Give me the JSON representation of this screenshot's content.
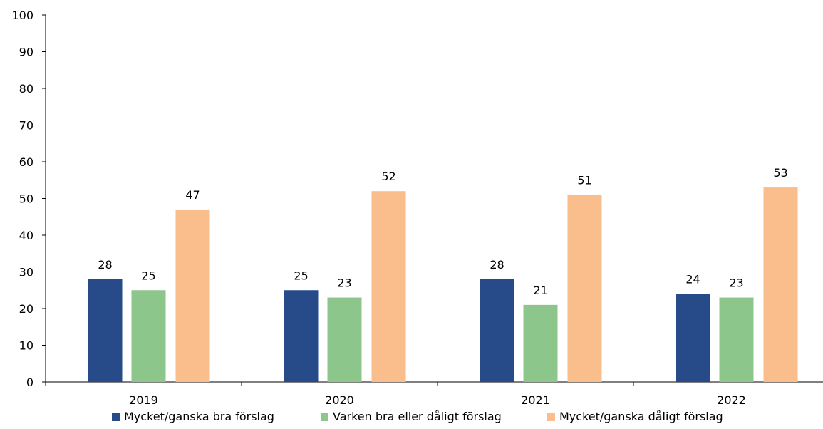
{
  "chart_data": {
    "type": "bar",
    "title": "",
    "xlabel": "",
    "ylabel": "",
    "categories": [
      "2019",
      "2020",
      "2021",
      "2022"
    ],
    "ylim": [
      0,
      100
    ],
    "yticks": [
      0,
      10,
      20,
      30,
      40,
      50,
      60,
      70,
      80,
      90,
      100
    ],
    "grid": false,
    "legend_position": "bottom",
    "data_labels": true,
    "series": [
      {
        "name": "Mycket/ganska bra förslag",
        "color": "#264b88",
        "values": [
          28,
          25,
          28,
          24
        ]
      },
      {
        "name": "Varken bra eller dåligt förslag",
        "color": "#8dc68a",
        "values": [
          25,
          23,
          21,
          23
        ]
      },
      {
        "name": "Mycket/ganska dåligt förslag",
        "color": "#f9be8c",
        "values": [
          47,
          52,
          51,
          53
        ]
      }
    ]
  }
}
